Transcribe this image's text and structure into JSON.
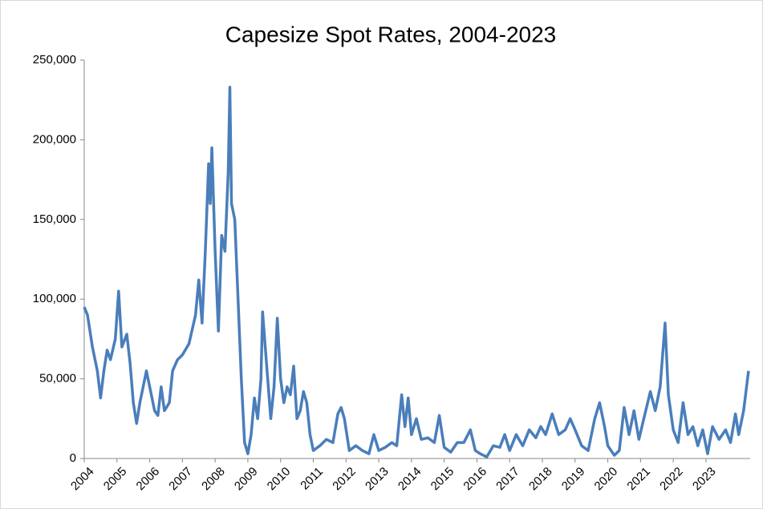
{
  "chart_data": {
    "type": "line",
    "title": "Capesize Spot Rates, 2004-2023",
    "color": "#4a7ebb",
    "x": [
      2004.0,
      2004.1,
      2004.25,
      2004.4,
      2004.5,
      2004.6,
      2004.7,
      2004.8,
      2004.95,
      2005.05,
      2005.15,
      2005.3,
      2005.4,
      2005.5,
      2005.6,
      2005.7,
      2005.8,
      2005.9,
      2006.0,
      2006.15,
      2006.25,
      2006.35,
      2006.45,
      2006.6,
      2006.7,
      2006.85,
      2007.0,
      2007.2,
      2007.4,
      2007.5,
      2007.6,
      2007.7,
      2007.8,
      2007.85,
      2007.9,
      2008.0,
      2008.1,
      2008.2,
      2008.3,
      2008.4,
      2008.45,
      2008.5,
      2008.6,
      2008.7,
      2008.8,
      2008.9,
      2009.0,
      2009.1,
      2009.2,
      2009.3,
      2009.4,
      2009.45,
      2009.55,
      2009.7,
      2009.8,
      2009.9,
      2010.0,
      2010.1,
      2010.2,
      2010.3,
      2010.4,
      2010.5,
      2010.6,
      2010.7,
      2010.8,
      2010.9,
      2011.0,
      2011.2,
      2011.4,
      2011.6,
      2011.75,
      2011.85,
      2011.95,
      2012.1,
      2012.3,
      2012.5,
      2012.7,
      2012.85,
      2013.0,
      2013.2,
      2013.4,
      2013.55,
      2013.7,
      2013.8,
      2013.9,
      2014.0,
      2014.15,
      2014.3,
      2014.5,
      2014.7,
      2014.85,
      2015.0,
      2015.2,
      2015.4,
      2015.6,
      2015.8,
      2015.95,
      2016.1,
      2016.3,
      2016.5,
      2016.7,
      2016.85,
      2017.0,
      2017.2,
      2017.4,
      2017.6,
      2017.8,
      2017.95,
      2018.1,
      2018.3,
      2018.5,
      2018.7,
      2018.85,
      2019.0,
      2019.2,
      2019.4,
      2019.6,
      2019.75,
      2019.9,
      2020.0,
      2020.2,
      2020.35,
      2020.5,
      2020.65,
      2020.8,
      2020.95,
      2021.1,
      2021.3,
      2021.45,
      2021.6,
      2021.75,
      2021.85,
      2022.0,
      2022.15,
      2022.3,
      2022.45,
      2022.6,
      2022.75,
      2022.9,
      2023.05,
      2023.2,
      2023.4,
      2023.6,
      2023.75,
      2023.9,
      2024.0,
      2024.15,
      2024.3
    ],
    "values": [
      95000,
      90000,
      70000,
      55000,
      38000,
      55000,
      68000,
      62000,
      75000,
      105000,
      70000,
      78000,
      60000,
      35000,
      22000,
      35000,
      45000,
      55000,
      45000,
      30000,
      27000,
      45000,
      30000,
      35000,
      55000,
      62000,
      65000,
      72000,
      90000,
      112000,
      85000,
      130000,
      185000,
      160000,
      195000,
      130000,
      80000,
      140000,
      130000,
      180000,
      233000,
      160000,
      150000,
      100000,
      50000,
      10000,
      3000,
      15000,
      38000,
      25000,
      50000,
      92000,
      65000,
      25000,
      45000,
      88000,
      50000,
      35000,
      45000,
      40000,
      58000,
      25000,
      30000,
      42000,
      35000,
      15000,
      5000,
      8000,
      12000,
      10000,
      28000,
      32000,
      25000,
      5000,
      8000,
      5000,
      3000,
      15000,
      5000,
      7000,
      10000,
      8000,
      40000,
      20000,
      38000,
      15000,
      25000,
      12000,
      13000,
      10000,
      27000,
      7000,
      4000,
      10000,
      10000,
      18000,
      5000,
      3000,
      1000,
      8000,
      7000,
      15000,
      5000,
      15000,
      8000,
      18000,
      13000,
      20000,
      15000,
      28000,
      15000,
      18000,
      25000,
      18000,
      8000,
      5000,
      25000,
      35000,
      20000,
      8000,
      2000,
      5000,
      32000,
      15000,
      30000,
      12000,
      25000,
      42000,
      30000,
      45000,
      85000,
      40000,
      18000,
      10000,
      35000,
      15000,
      20000,
      8000,
      18000,
      3000,
      20000,
      12000,
      18000,
      10000,
      28000,
      15000,
      30000,
      55000
    ],
    "xlim": [
      2004,
      2024.35
    ],
    "xticks": [
      2004,
      2005,
      2006,
      2007,
      2008,
      2009,
      2010,
      2011,
      2012,
      2013,
      2014,
      2015,
      2016,
      2017,
      2018,
      2019,
      2020,
      2021,
      2022,
      2023
    ],
    "ylim": [
      0,
      250000
    ],
    "yticks": [
      0,
      {
        "value": 50000,
        "label": "50,000"
      },
      {
        "value": 100000,
        "label": "100,000"
      },
      {
        "value": 150000,
        "label": "150,000"
      },
      {
        "value": 200000,
        "label": "200,000"
      },
      {
        "value": 250000,
        "label": "250,000"
      }
    ],
    "grid": false
  }
}
